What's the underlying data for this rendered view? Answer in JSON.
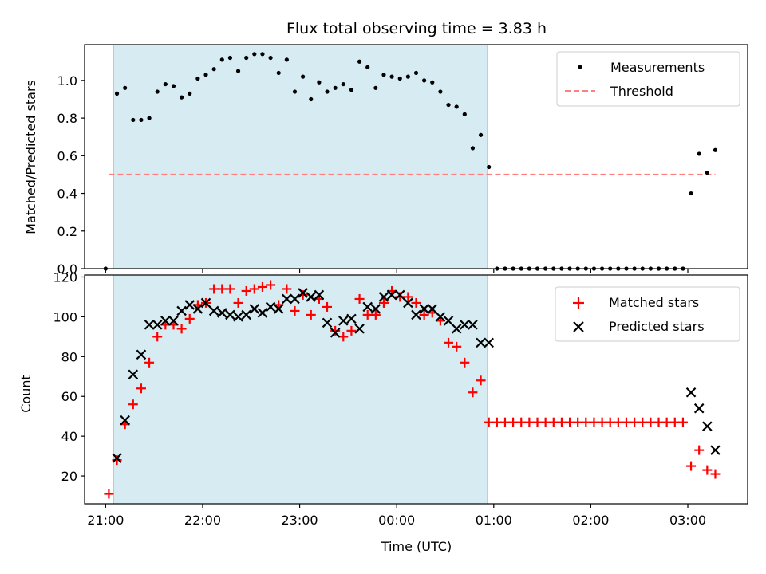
{
  "chart_data": [
    {
      "type": "scatter",
      "title": "Flux total observing time = 3.83 h",
      "xlabel": "",
      "ylabel": "Matched/Predicted stars",
      "ylim": [
        0,
        1.19
      ],
      "yticks": [
        0.0,
        0.2,
        0.4,
        0.6,
        0.8,
        1.0
      ],
      "ytick_labels": [
        "0.0",
        "0.2",
        "0.4",
        "0.6",
        "0.8",
        "1.0"
      ],
      "xlim": [
        "20:47",
        "03:37"
      ],
      "shaded_span": [
        "21:05",
        "00:56"
      ],
      "grid": false,
      "legend": "top-right",
      "series": [
        {
          "name": "Measurements",
          "kind": "points",
          "color": "#000000",
          "x": [
            "21:00",
            "21:07",
            "21:12",
            "21:17",
            "21:22",
            "21:27",
            "21:32",
            "21:37",
            "21:42",
            "21:47",
            "21:52",
            "21:57",
            "22:02",
            "22:07",
            "22:12",
            "22:17",
            "22:22",
            "22:27",
            "22:32",
            "22:37",
            "22:42",
            "22:47",
            "22:52",
            "22:57",
            "23:02",
            "23:07",
            "23:12",
            "23:17",
            "23:22",
            "23:27",
            "23:32",
            "23:37",
            "23:42",
            "23:47",
            "23:52",
            "23:57",
            "00:02",
            "00:07",
            "00:12",
            "00:17",
            "00:22",
            "00:27",
            "00:32",
            "00:37",
            "00:42",
            "00:47",
            "00:52",
            "00:57",
            "01:02",
            "01:07",
            "01:12",
            "01:17",
            "01:22",
            "01:27",
            "01:32",
            "01:37",
            "01:42",
            "01:47",
            "01:52",
            "01:57",
            "02:02",
            "02:07",
            "02:12",
            "02:17",
            "02:22",
            "02:27",
            "02:32",
            "02:37",
            "02:42",
            "02:47",
            "02:52",
            "02:57",
            "03:02",
            "03:07",
            "03:12",
            "03:17"
          ],
          "y": [
            0.0,
            0.93,
            0.96,
            0.79,
            0.79,
            0.8,
            0.94,
            0.98,
            0.97,
            0.91,
            0.93,
            1.01,
            1.03,
            1.06,
            1.11,
            1.12,
            1.05,
            1.12,
            1.14,
            1.14,
            1.12,
            1.04,
            1.11,
            0.94,
            1.02,
            0.9,
            0.99,
            0.94,
            0.96,
            0.98,
            0.95,
            1.1,
            1.07,
            0.96,
            1.03,
            1.02,
            1.01,
            1.02,
            1.04,
            1.0,
            0.99,
            0.94,
            0.87,
            0.86,
            0.82,
            0.64,
            0.71,
            0.54,
            0.0,
            0.0,
            0.0,
            0.0,
            0.0,
            0.0,
            0.0,
            0.0,
            0.0,
            0.0,
            0.0,
            0.0,
            0.0,
            0.0,
            0.0,
            0.0,
            0.0,
            0.0,
            0.0,
            0.0,
            0.0,
            0.0,
            0.0,
            0.0,
            0.4,
            0.61,
            0.51,
            0.63
          ]
        },
        {
          "name": "Threshold",
          "kind": "hline",
          "color": "#ff7f7f",
          "y": 0.5,
          "x_range": [
            "21:02",
            "03:17"
          ]
        }
      ]
    },
    {
      "type": "scatter",
      "title": "",
      "xlabel": "Time (UTC)",
      "ylabel": "Count",
      "ylim": [
        6,
        121
      ],
      "yticks": [
        20,
        40,
        60,
        80,
        100,
        120
      ],
      "ytick_labels": [
        "20",
        "40",
        "60",
        "80",
        "100",
        "120"
      ],
      "xlim": [
        "20:47",
        "03:37"
      ],
      "xticks": [
        "21:00",
        "22:00",
        "23:00",
        "00:00",
        "01:00",
        "02:00",
        "03:00"
      ],
      "xtick_labels": [
        "21:00",
        "22:00",
        "23:00",
        "00:00",
        "01:00",
        "02:00",
        "03:00"
      ],
      "shaded_span": [
        "21:05",
        "00:56"
      ],
      "grid": false,
      "legend": "top-right",
      "series": [
        {
          "name": "Matched stars",
          "marker": "plus",
          "color": "#ff0000",
          "x": [
            "21:02",
            "21:07",
            "21:12",
            "21:17",
            "21:22",
            "21:27",
            "21:32",
            "21:37",
            "21:42",
            "21:47",
            "21:52",
            "21:57",
            "22:02",
            "22:07",
            "22:12",
            "22:17",
            "22:22",
            "22:27",
            "22:32",
            "22:37",
            "22:42",
            "22:47",
            "22:52",
            "22:57",
            "23:02",
            "23:07",
            "23:12",
            "23:17",
            "23:22",
            "23:27",
            "23:32",
            "23:37",
            "23:42",
            "23:47",
            "23:52",
            "23:57",
            "00:02",
            "00:07",
            "00:12",
            "00:17",
            "00:22",
            "00:27",
            "00:32",
            "00:37",
            "00:42",
            "00:47",
            "00:52",
            "00:57",
            "01:02",
            "01:07",
            "01:12",
            "01:17",
            "01:22",
            "01:27",
            "01:32",
            "01:37",
            "01:42",
            "01:47",
            "01:52",
            "01:57",
            "02:02",
            "02:07",
            "02:12",
            "02:17",
            "02:22",
            "02:27",
            "02:32",
            "02:37",
            "02:42",
            "02:47",
            "02:52",
            "02:57",
            "03:02",
            "03:07",
            "03:12",
            "03:17"
          ],
          "y": [
            11,
            28,
            46,
            56,
            64,
            77,
            90,
            96,
            96,
            94,
            99,
            106,
            107,
            114,
            114,
            114,
            107,
            113,
            114,
            115,
            116,
            106,
            114,
            103,
            111,
            101,
            109,
            105,
            93,
            90,
            93,
            109,
            101,
            101,
            107,
            113,
            110,
            110,
            107,
            101,
            102,
            98,
            87,
            85,
            77,
            62,
            68,
            47,
            47,
            47,
            47,
            47,
            47,
            47,
            47,
            47,
            47,
            47,
            47,
            47,
            47,
            47,
            47,
            47,
            47,
            47,
            47,
            47,
            47,
            47,
            47,
            47,
            25,
            33,
            23,
            21
          ]
        },
        {
          "name": "Predicted stars",
          "marker": "x",
          "color": "#000000",
          "x": [
            "21:07",
            "21:12",
            "21:17",
            "21:22",
            "21:27",
            "21:32",
            "21:37",
            "21:42",
            "21:47",
            "21:52",
            "21:57",
            "22:02",
            "22:07",
            "22:12",
            "22:17",
            "22:22",
            "22:27",
            "22:32",
            "22:37",
            "22:42",
            "22:47",
            "22:52",
            "22:57",
            "23:02",
            "23:07",
            "23:12",
            "23:17",
            "23:22",
            "23:27",
            "23:32",
            "23:37",
            "23:42",
            "23:47",
            "23:52",
            "23:57",
            "00:02",
            "00:07",
            "00:12",
            "00:17",
            "00:22",
            "00:27",
            "00:32",
            "00:37",
            "00:42",
            "00:47",
            "00:52",
            "00:57",
            "03:02",
            "03:07",
            "03:12",
            "03:17"
          ],
          "y": [
            29,
            48,
            71,
            81,
            96,
            96,
            98,
            98,
            103,
            106,
            104,
            107,
            103,
            102,
            101,
            100,
            101,
            104,
            102,
            105,
            104,
            109,
            109,
            112,
            110,
            111,
            97,
            92,
            98,
            99,
            94,
            105,
            104,
            110,
            111,
            111,
            107,
            101,
            104,
            104,
            100,
            98,
            94,
            96,
            96,
            87,
            87,
            62,
            54,
            45,
            33
          ]
        }
      ]
    }
  ]
}
